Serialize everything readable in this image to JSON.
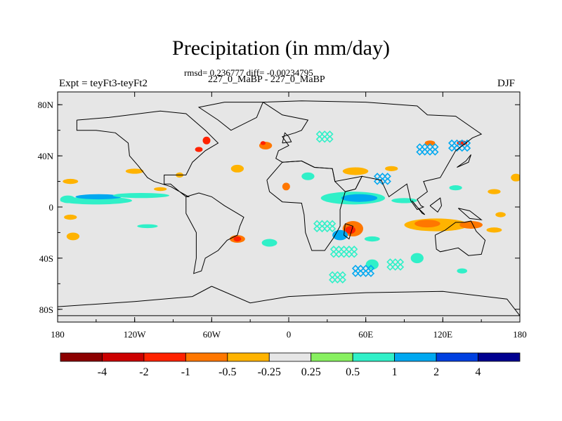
{
  "chart_data": {
    "type": "heatmap",
    "title": "Precipitation (in mm/day)",
    "stats_line": "rmsd= 0.236777 diff= -0.00234795",
    "subtitle": "227_0_MaBP - 227_0_MaBP",
    "left_label": "Expt = teyFt3-teyFt2",
    "right_label": "DJF",
    "x_axis": {
      "range": [
        -180,
        180
      ],
      "ticks": [
        {
          "value": -180,
          "label": "180"
        },
        {
          "value": -120,
          "label": "120W"
        },
        {
          "value": -60,
          "label": "60W"
        },
        {
          "value": 0,
          "label": "0"
        },
        {
          "value": 60,
          "label": "60E"
        },
        {
          "value": 120,
          "label": "120E"
        },
        {
          "value": 180,
          "label": "180"
        }
      ]
    },
    "y_axis": {
      "range": [
        -90,
        90
      ],
      "ticks": [
        {
          "value": 80,
          "label": "80N"
        },
        {
          "value": 40,
          "label": "40N"
        },
        {
          "value": 0,
          "label": "0"
        },
        {
          "value": -40,
          "label": "40S"
        },
        {
          "value": -80,
          "label": "80S"
        }
      ]
    },
    "colorbar": {
      "colors": [
        "#8c0000",
        "#cc0000",
        "#ff2200",
        "#ff7700",
        "#ffb300",
        "#e6e6e6",
        "#88f060",
        "#30f0c8",
        "#00a8f0",
        "#0040e0",
        "#000090"
      ],
      "labels": [
        "-4",
        "-2",
        "-1",
        "-0.5",
        "-0.25",
        "0.25",
        "0.5",
        "1",
        "2",
        "4"
      ]
    },
    "background_color": "#e6e6e6",
    "regions": [
      {
        "lon": -150,
        "lat": 5,
        "rlon": 28,
        "rlat": 3,
        "level": "0.5"
      },
      {
        "lon": -148,
        "lat": 8,
        "rlon": 18,
        "rlat": 2,
        "level": "1"
      },
      {
        "lon": -115,
        "lat": 9,
        "rlon": 22,
        "rlat": 2,
        "level": "0.5"
      },
      {
        "lon": -172,
        "lat": 6,
        "rlon": 6,
        "rlat": 3,
        "level": "0.5"
      },
      {
        "lon": 50,
        "lat": 7,
        "rlon": 25,
        "rlat": 5,
        "level": "0.5"
      },
      {
        "lon": 55,
        "lat": 7,
        "rlon": 14,
        "rlat": 3,
        "level": "1"
      },
      {
        "lon": 90,
        "lat": 5,
        "rlon": 10,
        "rlat": 2,
        "level": "0.5"
      },
      {
        "lon": 130,
        "lat": 15,
        "rlon": 5,
        "rlat": 2,
        "level": "0.5"
      },
      {
        "lon": 15,
        "lat": 24,
        "rlon": 5,
        "rlat": 3,
        "level": "0.5"
      },
      {
        "lon": -110,
        "lat": -15,
        "rlon": 8,
        "rlat": 1.5,
        "level": "0.5"
      },
      {
        "lon": -120,
        "lat": 28,
        "rlon": 7,
        "rlat": 2,
        "level": "-0.25"
      },
      {
        "lon": -40,
        "lat": 30,
        "rlon": 5,
        "rlat": 3,
        "level": "-0.25"
      },
      {
        "lon": -170,
        "lat": 20,
        "rlon": 6,
        "rlat": 2,
        "level": "-0.25"
      },
      {
        "lon": -85,
        "lat": 25,
        "rlon": 3,
        "rlat": 2,
        "level": "-0.25"
      },
      {
        "lon": -100,
        "lat": 14,
        "rlon": 5,
        "rlat": 1.5,
        "level": "-0.25"
      },
      {
        "lon": 177,
        "lat": 23,
        "rlon": 4,
        "rlat": 3,
        "level": "-0.25"
      },
      {
        "lon": -170,
        "lat": -8,
        "rlon": 5,
        "rlat": 2,
        "level": "-0.25"
      },
      {
        "lon": -168,
        "lat": -23,
        "rlon": 5,
        "rlat": 3,
        "level": "-0.25"
      },
      {
        "lon": 160,
        "lat": 12,
        "rlon": 5,
        "rlat": 2,
        "level": "-0.25"
      },
      {
        "lon": 165,
        "lat": -6,
        "rlon": 4,
        "rlat": 2,
        "level": "-0.25"
      },
      {
        "lon": 115,
        "lat": -14,
        "rlon": 25,
        "rlat": 5,
        "level": "-0.25"
      },
      {
        "lon": 108,
        "lat": -13,
        "rlon": 10,
        "rlat": 3,
        "level": "-0.5"
      },
      {
        "lon": 142,
        "lat": -14,
        "rlon": 9,
        "rlat": 3,
        "level": "-0.5"
      },
      {
        "lon": 160,
        "lat": -18,
        "rlon": 6,
        "rlat": 2,
        "level": "-0.25"
      },
      {
        "lon": 50,
        "lat": -17,
        "rlon": 8,
        "rlat": 6,
        "level": "-0.5"
      },
      {
        "lon": 48,
        "lat": -18,
        "rlon": 4,
        "rlat": 3,
        "level": "-1"
      },
      {
        "lon": 52,
        "lat": 28,
        "rlon": 10,
        "rlat": 3,
        "level": "-0.25"
      },
      {
        "lon": 80,
        "lat": 30,
        "rlon": 5,
        "rlat": 2,
        "level": "-0.25"
      },
      {
        "lon": -40,
        "lat": -25,
        "rlon": 6,
        "rlat": 3,
        "level": "-0.5"
      },
      {
        "lon": -40,
        "lat": -25,
        "rlon": 3,
        "rlat": 2,
        "level": "-1"
      },
      {
        "lon": -64,
        "lat": 52,
        "rlon": 3,
        "rlat": 3,
        "level": "-1"
      },
      {
        "lon": -70,
        "lat": 45,
        "rlon": 3,
        "rlat": 2,
        "level": "-1"
      },
      {
        "lon": -18,
        "lat": 48,
        "rlon": 5,
        "rlat": 3,
        "level": "-0.5"
      },
      {
        "lon": -20,
        "lat": 50,
        "rlon": 2,
        "rlat": 1.5,
        "level": "-1"
      },
      {
        "lon": 135,
        "lat": 50,
        "rlon": 4,
        "rlat": 2,
        "level": "-1"
      },
      {
        "lon": 110,
        "lat": 50,
        "rlon": 4,
        "rlat": 2,
        "level": "-0.5"
      },
      {
        "lon": -2,
        "lat": 16,
        "rlon": 3,
        "rlat": 3,
        "level": "-0.5"
      },
      {
        "lon": 65,
        "lat": -45,
        "rlon": 5,
        "rlat": 4,
        "level": "0.5"
      },
      {
        "lon": 100,
        "lat": -40,
        "rlon": 5,
        "rlat": 4,
        "level": "0.5"
      },
      {
        "lon": 40,
        "lat": -22,
        "rlon": 6,
        "rlat": 4,
        "level": "1"
      },
      {
        "lon": -15,
        "lat": -28,
        "rlon": 6,
        "rlat": 3,
        "level": "0.5"
      },
      {
        "lon": 135,
        "lat": -50,
        "rlon": 4,
        "rlat": 2,
        "level": "0.5"
      },
      {
        "lon": 65,
        "lat": -25,
        "rlon": 6,
        "rlat": 2,
        "level": "0.5"
      }
    ],
    "diamond_clusters": [
      {
        "lon": 30,
        "lat": -15,
        "n": 4,
        "level": "0.5"
      },
      {
        "lon": 45,
        "lat": -35,
        "n": 5,
        "level": "0.5"
      },
      {
        "lon": 60,
        "lat": -50,
        "n": 4,
        "level": "1"
      },
      {
        "lon": 85,
        "lat": -45,
        "n": 3,
        "level": "0.5"
      },
      {
        "lon": 110,
        "lat": 45,
        "n": 4,
        "level": "1"
      },
      {
        "lon": 135,
        "lat": 48,
        "n": 4,
        "level": "1"
      },
      {
        "lon": 30,
        "lat": 55,
        "n": 3,
        "level": "0.5"
      },
      {
        "lon": 75,
        "lat": 22,
        "n": 3,
        "level": "1"
      },
      {
        "lon": 40,
        "lat": -55,
        "n": 3,
        "level": "0.5"
      }
    ],
    "coastline": [
      [
        [
          -20,
          82
        ],
        [
          10,
          83
        ],
        [
          60,
          82
        ],
        [
          100,
          79
        ],
        [
          108,
          72
        ],
        [
          130,
          71
        ],
        [
          150,
          57
        ],
        [
          143,
          54
        ],
        [
          130,
          44
        ],
        [
          126,
          37
        ],
        [
          118,
          23
        ],
        [
          105,
          20
        ],
        [
          108,
          12
        ],
        [
          100,
          6
        ],
        [
          103,
          1
        ],
        [
          105,
          0
        ],
        [
          100,
          -2
        ],
        [
          95,
          5
        ],
        [
          92,
          18
        ],
        [
          78,
          8
        ],
        [
          72,
          21
        ],
        [
          57,
          24
        ],
        [
          52,
          14
        ],
        [
          44,
          12
        ],
        [
          36,
          20
        ],
        [
          34,
          30
        ],
        [
          20,
          31
        ],
        [
          10,
          36
        ],
        [
          -5,
          35
        ],
        [
          -10,
          38
        ],
        [
          -8,
          44
        ],
        [
          0,
          48
        ],
        [
          -5,
          55
        ],
        [
          5,
          58
        ],
        [
          10,
          60
        ],
        [
          15,
          68
        ],
        [
          -5,
          72
        ],
        [
          -20,
          82
        ]
      ],
      [
        [
          -17,
          21
        ],
        [
          -15,
          12
        ],
        [
          -5,
          4
        ],
        [
          10,
          3
        ],
        [
          12,
          -6
        ],
        [
          13,
          -20
        ],
        [
          18,
          -34
        ],
        [
          28,
          -34
        ],
        [
          35,
          -24
        ],
        [
          40,
          -15
        ],
        [
          40,
          -2
        ],
        [
          44,
          12
        ],
        [
          52,
          14
        ],
        [
          57,
          24
        ],
        [
          52,
          23
        ],
        [
          36,
          20
        ],
        [
          34,
          30
        ],
        [
          20,
          31
        ],
        [
          10,
          36
        ],
        [
          -5,
          35
        ],
        [
          -17,
          21
        ]
      ],
      [
        [
          -80,
          8
        ],
        [
          -70,
          11
        ],
        [
          -60,
          8
        ],
        [
          -50,
          1
        ],
        [
          -40,
          -5
        ],
        [
          -35,
          -8
        ],
        [
          -38,
          -15
        ],
        [
          -40,
          -22
        ],
        [
          -48,
          -26
        ],
        [
          -55,
          -34
        ],
        [
          -65,
          -40
        ],
        [
          -68,
          -50
        ],
        [
          -74,
          -52
        ],
        [
          -72,
          -40
        ],
        [
          -72,
          -20
        ],
        [
          -80,
          -5
        ],
        [
          -80,
          8
        ]
      ],
      [
        [
          -165,
          68
        ],
        [
          -140,
          70
        ],
        [
          -100,
          75
        ],
        [
          -80,
          73
        ],
        [
          -65,
          60
        ],
        [
          -55,
          50
        ],
        [
          -65,
          44
        ],
        [
          -75,
          35
        ],
        [
          -80,
          25
        ],
        [
          -97,
          25
        ],
        [
          -97,
          18
        ],
        [
          -92,
          18
        ],
        [
          -85,
          12
        ],
        [
          -80,
          8
        ],
        [
          -78,
          8
        ],
        [
          -92,
          16
        ],
        [
          -105,
          20
        ],
        [
          -110,
          23
        ],
        [
          -117,
          32
        ],
        [
          -124,
          40
        ],
        [
          -125,
          50
        ],
        [
          -135,
          58
        ],
        [
          -150,
          60
        ],
        [
          -165,
          60
        ],
        [
          -165,
          68
        ]
      ],
      [
        [
          -50,
          82
        ],
        [
          -20,
          82
        ],
        [
          -25,
          70
        ],
        [
          -45,
          60
        ],
        [
          -55,
          68
        ],
        [
          -70,
          78
        ],
        [
          -50,
          82
        ]
      ],
      [
        [
          -60,
          -62
        ],
        [
          -30,
          -75
        ],
        [
          0,
          -70
        ],
        [
          60,
          -67
        ],
        [
          120,
          -66
        ],
        [
          170,
          -72
        ],
        [
          180,
          -85
        ],
        [
          -180,
          -85
        ],
        [
          -180,
          -78
        ],
        [
          -120,
          -74
        ],
        [
          -75,
          -70
        ],
        [
          -60,
          -62
        ]
      ],
      [
        [
          114,
          -22
        ],
        [
          122,
          -18
        ],
        [
          130,
          -12
        ],
        [
          137,
          -12
        ],
        [
          142,
          -11
        ],
        [
          146,
          -19
        ],
        [
          153,
          -26
        ],
        [
          150,
          -37
        ],
        [
          140,
          -38
        ],
        [
          132,
          -32
        ],
        [
          118,
          -35
        ],
        [
          115,
          -33
        ],
        [
          114,
          -22
        ]
      ],
      [
        [
          -5,
          50
        ],
        [
          2,
          51
        ],
        [
          0,
          55
        ],
        [
          -3,
          58
        ],
        [
          -5,
          50
        ]
      ],
      [
        [
          44,
          -13
        ],
        [
          50,
          -15
        ],
        [
          47,
          -25
        ],
        [
          43,
          -22
        ],
        [
          44,
          -13
        ]
      ],
      [
        [
          131,
          31
        ],
        [
          140,
          35
        ],
        [
          142,
          41
        ],
        [
          138,
          36
        ],
        [
          131,
          31
        ]
      ],
      [
        [
          96,
          5
        ],
        [
          104,
          -5
        ],
        [
          106,
          -6
        ],
        [
          99,
          1
        ],
        [
          96,
          5
        ]
      ],
      [
        [
          110,
          1
        ],
        [
          118,
          7
        ],
        [
          119,
          1
        ],
        [
          116,
          -4
        ],
        [
          110,
          1
        ]
      ],
      [
        [
          132,
          -1
        ],
        [
          141,
          -3
        ],
        [
          150,
          -10
        ],
        [
          141,
          -9
        ],
        [
          132,
          -1
        ]
      ]
    ]
  }
}
